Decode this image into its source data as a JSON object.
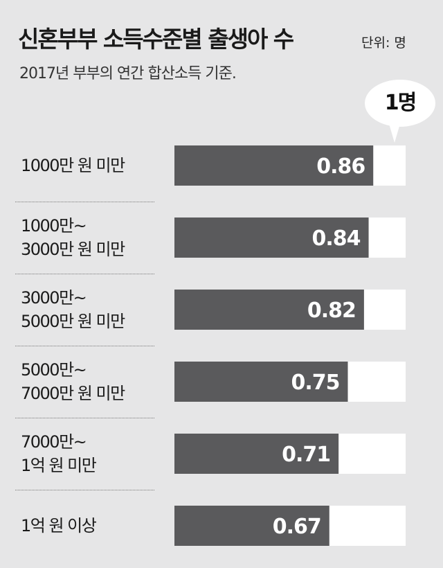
{
  "header": {
    "title": "신혼부부 소득수준별 출생아 수",
    "unit": "단위: 명",
    "subtitle": "2017년 부부의 연간 합산소득 기준."
  },
  "callout": {
    "label": "1명"
  },
  "colors": {
    "background": "#e6e6e7",
    "bar": "#5a5a5c",
    "track": "#ffffff",
    "value_text": "#ffffff"
  },
  "chart_data": {
    "type": "bar",
    "orientation": "horizontal",
    "title": "신혼부부 소득수준별 출생아 수",
    "subtitle": "2017년 부부의 연간 합산소득 기준.",
    "unit": "명",
    "xlim": [
      0,
      1
    ],
    "reference_value": 1,
    "reference_label": "1명",
    "grid": false,
    "legend": "none",
    "categories": [
      "1000만 원 미만",
      "1000만~\n3000만 원 미만",
      "3000만~\n5000만 원 미만",
      "5000만~\n7000만 원 미만",
      "7000만~\n1억 원 미만",
      "1억 원 이상"
    ],
    "values": [
      0.86,
      0.84,
      0.82,
      0.75,
      0.71,
      0.67
    ],
    "value_labels": [
      "0.86",
      "0.84",
      "0.82",
      "0.75",
      "0.71",
      "0.67"
    ]
  }
}
